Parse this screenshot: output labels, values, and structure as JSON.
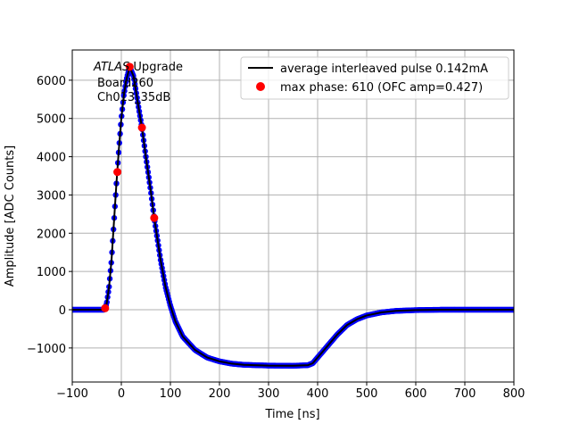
{
  "chart_data": {
    "type": "line",
    "xlabel": "Time [ns]",
    "ylabel": "Amplitude [ADC Counts]",
    "xlim": [
      -100,
      800
    ],
    "ylim": [
      -1890,
      6790
    ],
    "xticks": [
      -100,
      0,
      100,
      200,
      300,
      400,
      500,
      600,
      700,
      800
    ],
    "yticks": [
      -1000,
      0,
      1000,
      2000,
      3000,
      4000,
      5000,
      6000
    ],
    "grid": true,
    "legend_position": "top-right",
    "annotation": {
      "atlas": "ATLAS",
      "upgrade": "Upgrade",
      "board": "Board260",
      "channel": "Ch013_35dB"
    },
    "series": [
      {
        "name": "average interleaved pulse 0.142mA",
        "style": "black line with blue sample dots",
        "color": "#000000",
        "dot_color": "#0000ff",
        "x": [
          -100,
          -35,
          -30,
          -25,
          -20,
          -15,
          -10,
          -5,
          0,
          5,
          10,
          17,
          25,
          35,
          42,
          50,
          60,
          67,
          80,
          90,
          100,
          110,
          125,
          150,
          175,
          200,
          225,
          250,
          300,
          350,
          380,
          390,
          400,
          420,
          440,
          460,
          480,
          500,
          530,
          560,
          600,
          650,
          800
        ],
        "y": [
          0,
          0,
          150,
          600,
          1300,
          2300,
          3300,
          4200,
          5000,
          5600,
          6000,
          6350,
          6100,
          5300,
          4760,
          4000,
          3100,
          2400,
          1300,
          600,
          100,
          -300,
          -700,
          -1050,
          -1250,
          -1350,
          -1410,
          -1440,
          -1460,
          -1465,
          -1450,
          -1400,
          -1250,
          -950,
          -650,
          -400,
          -250,
          -150,
          -70,
          -30,
          -10,
          0,
          0
        ]
      },
      {
        "name": "max phase: 610 (OFC amp=0.427)",
        "style": "markers",
        "color": "#ff0000",
        "x": [
          -33,
          -8,
          17,
          42,
          67
        ],
        "y": [
          40,
          3600,
          6350,
          4760,
          2400
        ]
      }
    ]
  }
}
